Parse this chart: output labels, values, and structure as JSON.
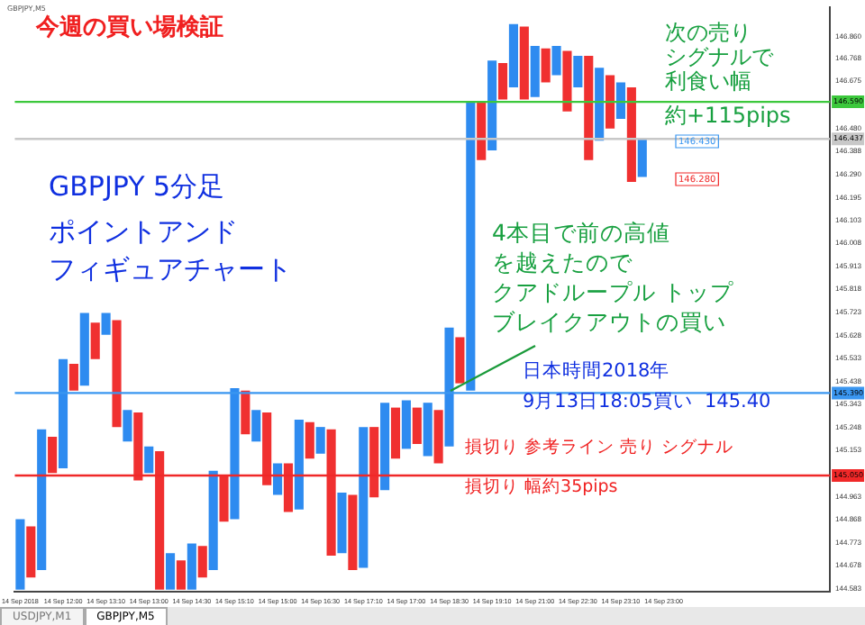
{
  "chart_data": {
    "type": "bar",
    "title": "今週の買い場検証",
    "categories": [
      "14 Sep 2018",
      null,
      null,
      null,
      "14 Sep 12:00",
      null,
      null,
      null,
      "14 Sep 13:10",
      null,
      null,
      null,
      "14 Sep 13:00",
      null,
      null,
      null,
      "14 Sep 14:30",
      null,
      null,
      null,
      "14 Sep 15:10",
      null,
      null,
      null,
      "14 Sep 15:00",
      null,
      null,
      null,
      "14 Sep 16:30",
      null,
      null,
      null,
      "14 Sep 17:10",
      null,
      null,
      null,
      "14 Sep 17:00",
      null,
      null,
      null,
      "14 Sep 18:30",
      null,
      null,
      null,
      "14 Sep 19:10",
      null,
      null,
      null,
      "14 Sep 21:00",
      null,
      null,
      null,
      "14 Sep 22:30",
      null,
      null,
      null,
      "14 Sep 23:10",
      null,
      null,
      null,
      "14 Sep 23:00",
      null,
      null,
      null,
      null,
      null,
      null,
      null,
      null,
      null,
      null,
      null,
      null,
      null,
      null,
      null
    ],
    "base": [
      144.58,
      144.63,
      144.66,
      145.06,
      145.08,
      145.4,
      145.42,
      145.53,
      145.63,
      145.25,
      145.19,
      145.03,
      145.06,
      144.58,
      144.58,
      144.58,
      144.58,
      144.63,
      144.66,
      144.86,
      144.87,
      145.22,
      145.19,
      145.01,
      144.97,
      144.9,
      144.91,
      145.12,
      145.14,
      144.72,
      144.73,
      144.66,
      144.67,
      144.96,
      144.99,
      145.12,
      145.16,
      145.18,
      145.13,
      145.1,
      145.17,
      145.43,
      145.4,
      146.35,
      146.39,
      146.6,
      146.65,
      146.6,
      146.61,
      146.67,
      146.7,
      146.55,
      146.65,
      146.35,
      146.43,
      146.48,
      146.52,
      146.26,
      146.28,
      null,
      null,
      null,
      null,
      null,
      null,
      null,
      null,
      null,
      null,
      null,
      null,
      null,
      null,
      null,
      null,
      null
    ],
    "values": [
      0.29,
      0.21,
      0.58,
      0.15,
      0.45,
      0.11,
      0.3,
      0.15,
      0.09,
      0.44,
      0.13,
      0.28,
      0.11,
      0.57,
      0.15,
      0.12,
      0.19,
      0.13,
      0.41,
      0.19,
      0.54,
      0.18,
      0.13,
      0.3,
      0.13,
      0.2,
      0.37,
      0.15,
      0.11,
      0.52,
      0.25,
      0.31,
      0.58,
      0.29,
      0.36,
      0.21,
      0.2,
      0.15,
      0.22,
      0.22,
      0.49,
      0.19,
      1.19,
      0.24,
      0.37,
      0.15,
      0.26,
      0.3,
      0.21,
      0.14,
      0.12,
      0.25,
      0.13,
      0.43,
      0.3,
      0.22,
      0.15,
      0.39,
      0.16,
      null,
      null,
      null,
      null,
      null,
      null,
      null,
      null,
      null,
      null,
      null,
      null,
      null,
      null,
      null,
      null,
      null
    ],
    "colors": [
      "#2e8bf0",
      "#f03030",
      "#2e8bf0",
      "#f03030",
      "#2e8bf0",
      "#f03030",
      "#2e8bf0",
      "#f03030",
      "#2e8bf0",
      "#f03030",
      "#2e8bf0",
      "#f03030",
      "#2e8bf0",
      "#f03030",
      "#2e8bf0",
      "#f03030",
      "#2e8bf0",
      "#f03030",
      "#2e8bf0",
      "#f03030",
      "#2e8bf0",
      "#f03030",
      "#2e8bf0",
      "#f03030",
      "#2e8bf0",
      "#f03030",
      "#2e8bf0",
      "#f03030",
      "#2e8bf0",
      "#f03030",
      "#2e8bf0",
      "#f03030",
      "#2e8bf0",
      "#f03030",
      "#2e8bf0",
      "#f03030",
      "#2e8bf0",
      "#f03030",
      "#2e8bf0",
      "#f03030",
      "#2e8bf0",
      "#f03030",
      "#2e8bf0",
      "#f03030",
      "#2e8bf0",
      "#f03030",
      "#2e8bf0",
      "#f03030",
      "#2e8bf0",
      "#f03030",
      "#2e8bf0",
      "#f03030",
      "#2e8bf0",
      "#f03030",
      "#2e8bf0",
      "#f03030",
      "#2e8bf0",
      "#f03030",
      "#2e8bf0",
      "#2e8bf0",
      "#2e8bf0",
      "#2e8bf0",
      "#2e8bf0",
      "#2e8bf0",
      "#2e8bf0",
      "#2e8bf0",
      "#2e8bf0",
      "#2e8bf0",
      "#2e8bf0",
      "#2e8bf0",
      "#2e8bf0",
      "#2e8bf0",
      "#2e8bf0",
      "#2e8bf0",
      "#2e8bf0",
      "#2e8bf0"
    ],
    "ylim": [
      144.57,
      146.98
    ],
    "yticks": [
      {
        "value": 146.86,
        "label": "146.860"
      },
      {
        "value": 146.768,
        "label": "146.768"
      },
      {
        "value": 146.675,
        "label": "146.675"
      },
      {
        "value": 146.48,
        "label": "146.480"
      },
      {
        "value": 146.388,
        "label": "146.388"
      },
      {
        "value": 146.29,
        "label": "146.290"
      },
      {
        "value": 146.195,
        "label": "146.195"
      },
      {
        "value": 146.103,
        "label": "146.103"
      },
      {
        "value": 146.008,
        "label": "146.008"
      },
      {
        "value": 145.913,
        "label": "145.913"
      },
      {
        "value": 145.818,
        "label": "145.818"
      },
      {
        "value": 145.723,
        "label": "145.723"
      },
      {
        "value": 145.628,
        "label": "145.628"
      },
      {
        "value": 145.533,
        "label": "145.533"
      },
      {
        "value": 145.438,
        "label": "145.438"
      },
      {
        "value": 145.343,
        "label": "145.343"
      },
      {
        "value": 145.248,
        "label": "145.248"
      },
      {
        "value": 145.153,
        "label": "145.153"
      },
      {
        "value": 144.963,
        "label": "144.963"
      },
      {
        "value": 144.868,
        "label": "144.868"
      },
      {
        "value": 144.773,
        "label": "144.773"
      },
      {
        "value": 144.678,
        "label": "144.678"
      },
      {
        "value": 144.583,
        "label": "144.583"
      }
    ],
    "ref_lines": [
      {
        "axis": "y",
        "value": 146.59,
        "label": "146.590",
        "color": "#3cc83c"
      },
      {
        "axis": "y",
        "value": 146.437,
        "label": "146.437",
        "color": "#c8c8c8"
      },
      {
        "axis": "y",
        "value": 145.39,
        "label": "145.390",
        "color": "#3a96f0"
      },
      {
        "axis": "y",
        "value": 145.05,
        "label": "145.050",
        "color": "#f02828"
      }
    ],
    "annotations": [
      "GBPJPY,M5",
      "GBPJPY 5分足ポイントアンドフィギュアチャート",
      "次の売りシグナルで利食い幅約+115pips",
      {
        "text": "4本目で前の高値を越えたのでクアドループル トップブレイクアウトの買い",
        "y": 145.4
      },
      {
        "text": "日本時間2018年9月13日18:05買い  145.40",
        "y": 145.4
      },
      "損切り 参考ライン 売り シグナル",
      "損切り 幅約35pips",
      "146.430",
      "146.280",
      "USDJPY,M1",
      "GBPJPY,M5"
    ]
  }
}
